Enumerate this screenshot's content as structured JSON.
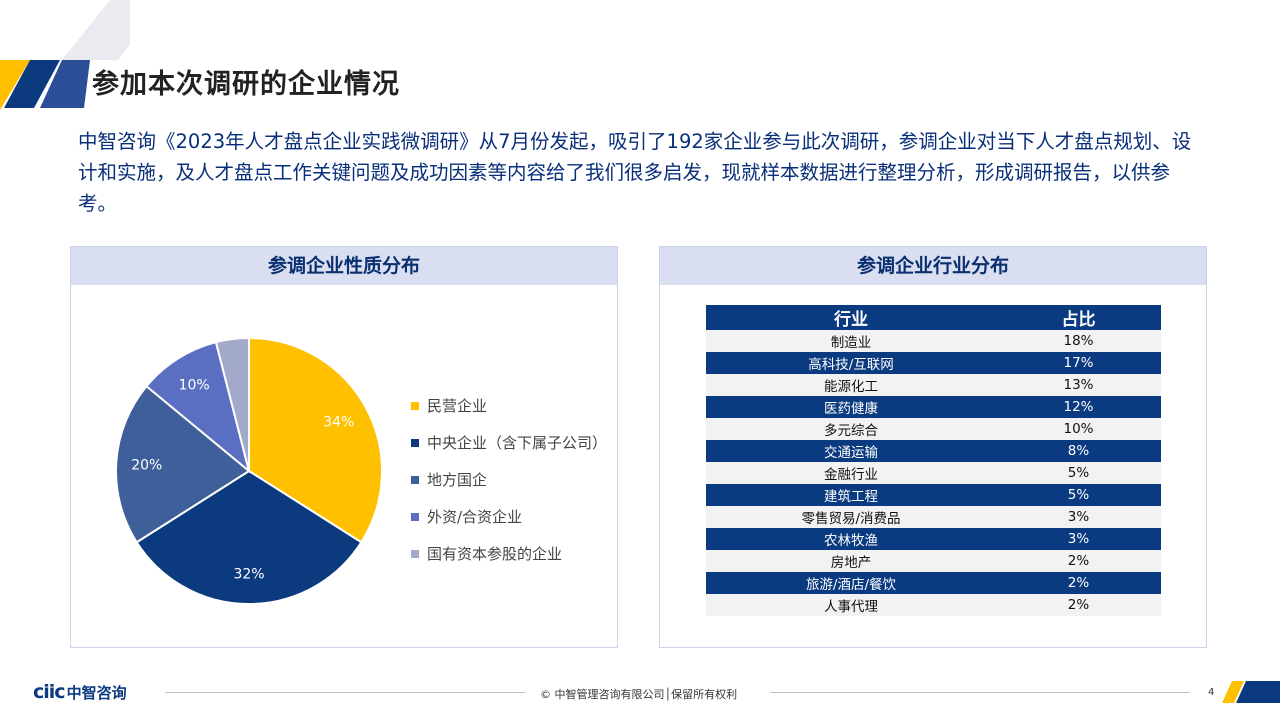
{
  "slide": {
    "title": "参加本次调研的企业情况",
    "intro": "中智咨询《2023年人才盘点企业实践微调研》从7月份发起，吸引了192家企业参与此次调研，参调企业对当下人才盘点规划、设计和实施，及人才盘点工作关键问题及成功因素等内容给了我们很多启发，现就样本数据进行整理分析，形成调研报告，以供参考。"
  },
  "left_panel": {
    "title": "参调企业性质分布"
  },
  "right_panel": {
    "title": "参调企业行业分布"
  },
  "chart_data": [
    {
      "type": "pie",
      "title": "参调企业性质分布",
      "labels": [
        "民营企业",
        "中央企业（含下属子公司）",
        "地方国企",
        "外资/合资企业",
        "国有资本参股的企业"
      ],
      "values": [
        34,
        32,
        20,
        10,
        4
      ],
      "data_labels": [
        "34%",
        "32%",
        "20%",
        "10%",
        ""
      ],
      "colors": [
        "#FFC000",
        "#0C3A7F",
        "#3F5F9B",
        "#5A6FC2",
        "#A3A9C9"
      ],
      "legend": "right"
    },
    {
      "type": "table",
      "title": "参调企业行业分布",
      "columns": [
        "行业",
        "占比"
      ],
      "rows": [
        [
          "制造业",
          "18%"
        ],
        [
          "高科技/互联网",
          "17%"
        ],
        [
          "能源化工",
          "13%"
        ],
        [
          "医药健康",
          "12%"
        ],
        [
          "多元综合",
          "10%"
        ],
        [
          "交通运输",
          "8%"
        ],
        [
          "金融行业",
          "5%"
        ],
        [
          "建筑工程",
          "5%"
        ],
        [
          "零售贸易/消费品",
          "3%"
        ],
        [
          "农林牧渔",
          "3%"
        ],
        [
          "房地产",
          "2%"
        ],
        [
          "旅游/酒店/餐饮",
          "2%"
        ],
        [
          "人事代理",
          "2%"
        ]
      ]
    }
  ],
  "footer": {
    "logo_latin": "ciic",
    "logo_cn": "中智咨询",
    "copyright": "© 中智管理咨询有限公司│保留所有权利",
    "page": "4"
  },
  "watermark": {
    "text": "ciic中智咨询"
  },
  "colors": {
    "navy": "#0A3A80",
    "gold": "#FFC000",
    "header_bg": "#D9DFF0"
  }
}
